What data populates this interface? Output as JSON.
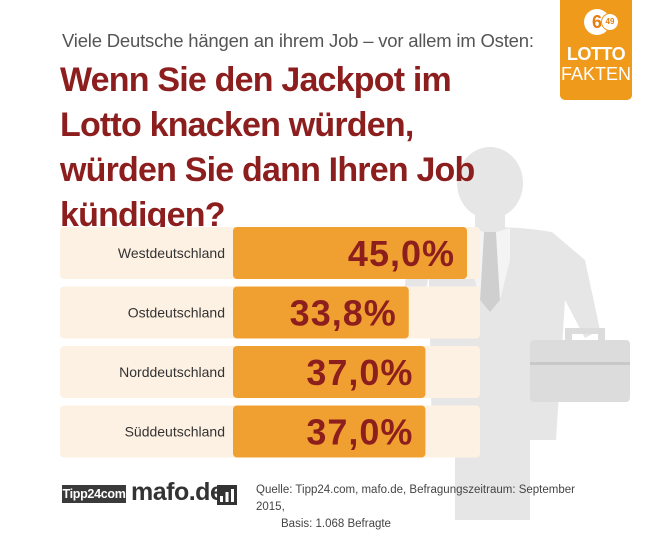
{
  "header": {
    "subtitle": "Viele Deutsche hängen an ihrem Job – vor allem im Osten:",
    "title": "Wenn Sie den Jackpot im Lotto knacken würden, würden Sie dann Ihren Job kündigen?"
  },
  "logo": {
    "ball_main": "6",
    "ball_small": "49",
    "word1": "LOTTO",
    "word2": "FAKTEN"
  },
  "chart_data": {
    "type": "bar",
    "orientation": "horizontal",
    "categories": [
      "Westdeutschland",
      "Ostdeutschland",
      "Norddeutschland",
      "Süddeutschland"
    ],
    "values": [
      45.0,
      33.8,
      37.0,
      37.0
    ],
    "value_labels": [
      "45,0%",
      "33,8%",
      "37,0%",
      "37,0%"
    ],
    "unit": "%",
    "xlim": [
      0,
      45.0
    ],
    "grid": false,
    "legend": "none",
    "colors": {
      "bar": "#f0a030",
      "row_background": "#fdf1e3",
      "value_text": "#8c1e1e"
    }
  },
  "footer": {
    "logo_tipp": "Tipp24com",
    "logo_mafo": "mafo.de",
    "source_line1": "Quelle: Tipp24.com, mafo.de, Befragungszeitraum: September 2015,",
    "source_line2": "Basis: 1.068 Befragte"
  },
  "colors": {
    "title": "#8c1e1e",
    "accent": "#ef9a1a",
    "figure": "#e8e8e8"
  }
}
